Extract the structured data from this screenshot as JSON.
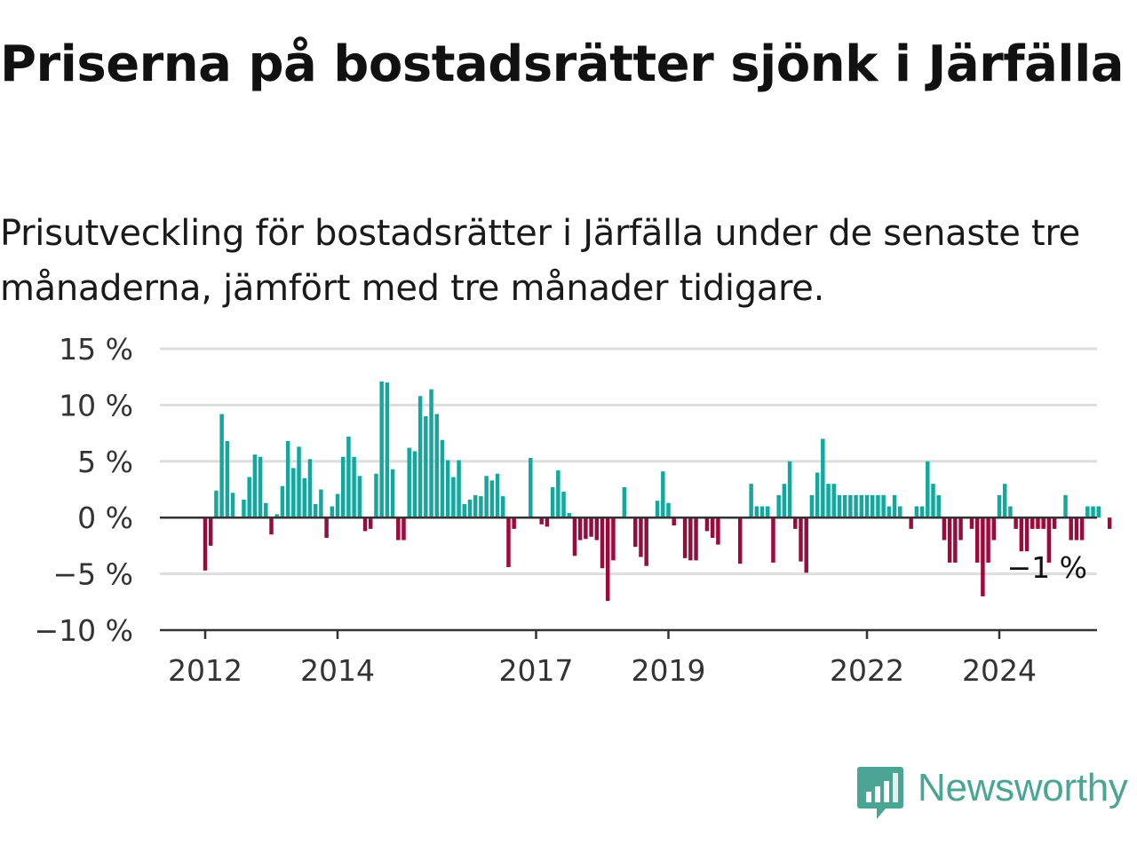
{
  "title": "Priserna på bostadsrätter sjönk i Järfälla",
  "subtitle": "Prisutveckling för bostadsrätter i Järfälla under de senaste tre månaderna, jämfört med tre månader tidigare.",
  "brand": {
    "name": "Newsworthy",
    "icon": "newsworthy-logo-icon"
  },
  "colors": {
    "positive": "#13a89e",
    "negative": "#9c0a3c",
    "grid": "#dddddd",
    "axis": "#333333",
    "brand": "#4aa595"
  },
  "chart_data": {
    "type": "bar",
    "title": "Priserna på bostadsrätter sjönk i Järfälla",
    "xlabel": "",
    "ylabel": "",
    "ylim": [
      -10,
      15
    ],
    "yticks": [
      15,
      10,
      5,
      0,
      -5,
      -10
    ],
    "ytick_labels": [
      "15 %",
      "10 %",
      "5 %",
      "0 %",
      "−5 %",
      "−10 %"
    ],
    "xticks": [
      2012,
      2014,
      2017,
      2019,
      2022,
      2024
    ],
    "xtick_labels": [
      "2012",
      "2014",
      "2017",
      "2019",
      "2022",
      "2024"
    ],
    "grid": true,
    "start": "2012-01",
    "annotation": {
      "text": "−1 %",
      "value": -1
    },
    "values": [
      -4.7,
      -2.5,
      2.4,
      9.2,
      6.8,
      2.2,
      0,
      1.6,
      3.6,
      5.6,
      5.4,
      1.3,
      -1.5,
      0.3,
      2.8,
      6.8,
      4.4,
      6.3,
      3.5,
      5.2,
      1.2,
      2.5,
      -1.8,
      1.0,
      2.1,
      5.4,
      7.2,
      5.4,
      3.7,
      -1.2,
      -1.0,
      3.9,
      12.1,
      12.0,
      4.3,
      -2.0,
      -2.0,
      6.2,
      5.9,
      10.8,
      9.0,
      11.4,
      9.2,
      6.9,
      5.1,
      3.6,
      5.1,
      1.2,
      1.6,
      2.0,
      1.9,
      3.7,
      3.3,
      3.9,
      1.9,
      -4.4,
      -1.0,
      0,
      0,
      5.3,
      0,
      -0.6,
      -0.8,
      2.7,
      4.2,
      2.3,
      0.4,
      -3.4,
      -2.0,
      -1.9,
      -1.7,
      -2.0,
      -4.5,
      -7.4,
      -3.8,
      0,
      2.7,
      0,
      -2.6,
      -3.5,
      -4.3,
      0,
      1.5,
      4.1,
      1.3,
      -0.7,
      0,
      -3.6,
      -3.8,
      -3.8,
      0,
      -1.2,
      -1.8,
      -2.4,
      0,
      0,
      0,
      -4.1,
      0,
      3.0,
      1.0,
      1.0,
      1.0,
      -4.0,
      2.0,
      3.0,
      5.0,
      -1.0,
      -3.9,
      -4.9,
      2.0,
      4.0,
      7.0,
      3.0,
      3.0,
      2.0,
      2.0,
      2.0,
      2.0,
      2.0,
      2.0,
      2.0,
      2.0,
      2.0,
      1.0,
      2.0,
      1.0,
      0,
      -1.0,
      1.0,
      1.0,
      5.0,
      3.0,
      2.0,
      -2.0,
      -4.0,
      -4.0,
      -2.0,
      0,
      -1.0,
      -4.0,
      -7.0,
      -4.0,
      -2.0,
      2.0,
      3.0,
      1.0,
      -1.0,
      -3.0,
      -3.0,
      -1.0,
      -1.0,
      -1.0,
      -4.0,
      -1.0,
      0,
      2.0,
      -2.0,
      -2.0,
      -2.0,
      1.0,
      1.0,
      1.0,
      0,
      -1.0
    ]
  }
}
